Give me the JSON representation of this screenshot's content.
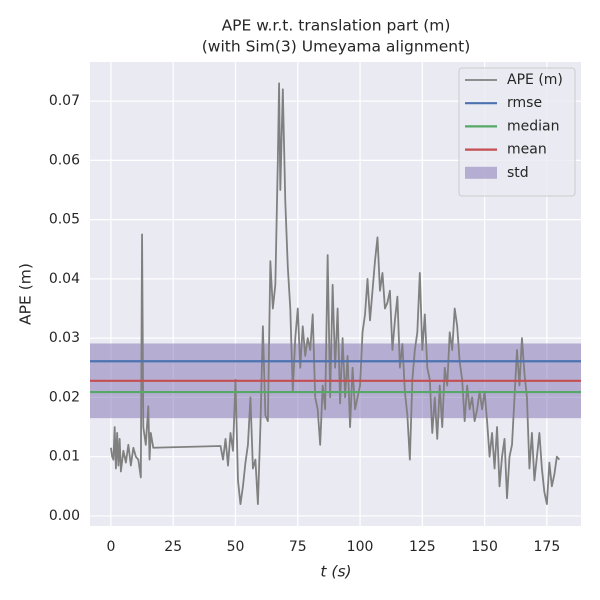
{
  "chart_data": {
    "type": "line",
    "title": "APE w.r.t. translation part (m)",
    "subtitle": "(with Sim(3) Umeyama alignment)",
    "x_label": "t (s)",
    "y_label": "APE (m)",
    "xlim": [
      -8.4,
      188.7
    ],
    "xticks": [
      0,
      25,
      50,
      75,
      100,
      125,
      150,
      175
    ],
    "ylim": [
      -0.0017,
      0.0766
    ],
    "yticks": [
      {
        "value": 0,
        "label": "0.00"
      },
      {
        "value": 0.01,
        "label": "0.01"
      },
      {
        "value": 0.02,
        "label": "0.02"
      },
      {
        "value": 0.03,
        "label": "0.03"
      },
      {
        "value": 0.04,
        "label": "0.04"
      },
      {
        "value": 0.05,
        "label": "0.05"
      },
      {
        "value": 0.06,
        "label": "0.06"
      },
      {
        "value": 0.07,
        "label": "0.07"
      }
    ],
    "grid": true,
    "legend": "upper right",
    "series": [
      {
        "name": "APE (m)",
        "color": "#808080",
        "x": [
          0,
          0.5,
          1,
          1.5,
          2,
          2.5,
          3,
          3.5,
          4,
          5,
          6,
          7,
          8,
          9,
          10,
          11,
          12,
          12.5,
          13,
          14,
          15,
          15.5,
          16,
          17,
          44,
          45,
          46,
          47,
          48,
          49,
          50,
          51,
          52,
          53,
          54,
          55,
          56,
          57,
          58,
          59,
          60,
          61,
          62,
          63,
          64,
          65,
          66,
          67,
          67.5,
          68,
          69,
          70,
          71,
          72,
          73,
          74,
          75,
          76,
          77,
          78,
          79,
          80,
          81,
          82,
          83,
          84,
          85,
          86,
          87,
          88,
          89,
          90,
          91,
          92,
          93,
          94,
          95,
          96,
          97,
          98,
          100,
          101,
          102,
          103,
          104,
          105,
          106,
          107,
          108,
          109,
          110,
          111,
          112,
          113,
          114,
          115,
          116,
          117,
          118,
          119,
          120,
          121,
          122,
          123,
          124,
          125,
          126,
          127,
          128,
          129,
          130,
          131,
          132,
          133,
          134,
          135,
          136,
          137,
          138,
          139,
          140,
          141,
          142,
          143,
          144,
          145,
          146,
          147,
          148,
          149,
          150,
          151,
          152,
          153,
          154,
          155,
          156,
          157,
          158,
          159,
          160,
          161,
          162,
          163,
          164,
          165,
          166,
          167,
          168,
          169,
          170,
          171,
          172,
          173,
          174,
          175,
          176,
          177,
          178,
          179,
          180
        ],
        "values": [
          0.0115,
          0.01,
          0.0095,
          0.015,
          0.008,
          0.014,
          0.0085,
          0.013,
          0.0075,
          0.011,
          0.009,
          0.012,
          0.0085,
          0.0115,
          0.01,
          0.0095,
          0.0065,
          0.0475,
          0.015,
          0.012,
          0.0185,
          0.0095,
          0.014,
          0.0115,
          0.0118,
          0.0095,
          0.013,
          0.0085,
          0.014,
          0.011,
          0.023,
          0.006,
          0.002,
          0.005,
          0.009,
          0.012,
          0.02,
          0.008,
          0.0095,
          0.002,
          0.015,
          0.032,
          0.017,
          0.016,
          0.043,
          0.035,
          0.039,
          0.06,
          0.073,
          0.055,
          0.072,
          0.053,
          0.042,
          0.035,
          0.021,
          0.03,
          0.035,
          0.025,
          0.032,
          0.027,
          0.03,
          0.028,
          0.034,
          0.02,
          0.018,
          0.012,
          0.022,
          0.018,
          0.044,
          0.02,
          0.039,
          0.025,
          0.035,
          0.019,
          0.03,
          0.02,
          0.027,
          0.015,
          0.025,
          0.018,
          0.022,
          0.031,
          0.034,
          0.04,
          0.033,
          0.038,
          0.043,
          0.047,
          0.038,
          0.041,
          0.035,
          0.036,
          0.038,
          0.028,
          0.033,
          0.037,
          0.025,
          0.029,
          0.021,
          0.017,
          0.0095,
          0.023,
          0.028,
          0.031,
          0.041,
          0.028,
          0.034,
          0.025,
          0.023,
          0.014,
          0.02,
          0.013,
          0.022,
          0.015,
          0.025,
          0.022,
          0.031,
          0.028,
          0.035,
          0.032,
          0.026,
          0.023,
          0.016,
          0.022,
          0.018,
          0.02,
          0.016,
          0.018,
          0.021,
          0.018,
          0.021,
          0.016,
          0.01,
          0.014,
          0.008,
          0.015,
          0.005,
          0.01,
          0.013,
          0.003,
          0.01,
          0.012,
          0.02,
          0.028,
          0.022,
          0.03,
          0.024,
          0.02,
          0.008,
          0.014,
          0.006,
          0.01,
          0.014,
          0.008,
          0.004,
          0.002,
          0.009,
          0.005,
          0.007,
          0.01,
          0.0095
        ]
      }
    ],
    "reference_lines": [
      {
        "name": "rmse",
        "color": "#4c72b0",
        "value": 0.0261
      },
      {
        "name": "median",
        "color": "#55a868",
        "value": 0.0209
      },
      {
        "name": "mean",
        "color": "#c44e52",
        "value": 0.0228
      }
    ],
    "std_band": {
      "name": "std",
      "color": "#8172b2",
      "value": 0.0063
    }
  }
}
